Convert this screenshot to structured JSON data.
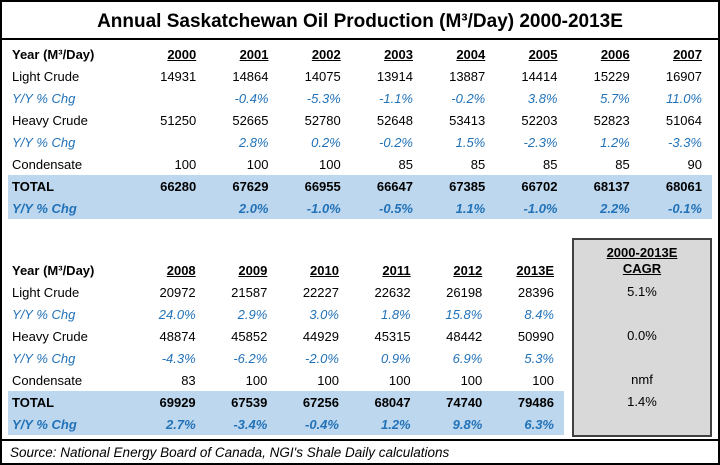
{
  "source_note": "Source: National Energy Board of Canada, NGI's Shale Daily calculations",
  "colors": {
    "accent_blue": "#2272B8",
    "total_row_bg": "#BDD7EE",
    "cagr_box_bg": "#D9D9D9",
    "cagr_box_border": "#404040"
  },
  "chart_data": {
    "type": "table",
    "title": "Annual Saskatchewan Oil Production (M³/Day) 2000-2013E",
    "unit": "M³/Day",
    "tables": [
      {
        "columns": [
          "Year (M³/Day)",
          "2000",
          "2001",
          "2002",
          "2003",
          "2004",
          "2005",
          "2006",
          "2007"
        ],
        "rows": [
          {
            "label": "Light Crude",
            "style": "normal",
            "values": [
              "14931",
              "14864",
              "14075",
              "13914",
              "13887",
              "14414",
              "15229",
              "16907"
            ]
          },
          {
            "label": "Y/Y % Chg",
            "style": "pct",
            "values": [
              "",
              "-0.4%",
              "-5.3%",
              "-1.1%",
              "-0.2%",
              "3.8%",
              "5.7%",
              "11.0%"
            ]
          },
          {
            "label": "Heavy Crude",
            "style": "normal",
            "values": [
              "51250",
              "52665",
              "52780",
              "52648",
              "53413",
              "52203",
              "52823",
              "51064"
            ]
          },
          {
            "label": "Y/Y % Chg",
            "style": "pct",
            "values": [
              "",
              "2.8%",
              "0.2%",
              "-0.2%",
              "1.5%",
              "-2.3%",
              "1.2%",
              "-3.3%"
            ]
          },
          {
            "label": "Condensate",
            "style": "normal",
            "values": [
              "100",
              "100",
              "100",
              "85",
              "85",
              "85",
              "85",
              "90"
            ]
          },
          {
            "label": "TOTAL",
            "style": "total",
            "values": [
              "66280",
              "67629",
              "66955",
              "66647",
              "67385",
              "66702",
              "68137",
              "68061"
            ]
          },
          {
            "label": "Y/Y % Chg",
            "style": "total-pct",
            "values": [
              "",
              "2.0%",
              "-1.0%",
              "-0.5%",
              "1.1%",
              "-1.0%",
              "2.2%",
              "-0.1%"
            ]
          }
        ]
      },
      {
        "columns": [
          "Year (M³/Day)",
          "2008",
          "2009",
          "2010",
          "2011",
          "2012",
          "2013E"
        ],
        "cagr_header": [
          "2000-2013E",
          "CAGR"
        ],
        "rows": [
          {
            "label": "Light Crude",
            "style": "normal",
            "values": [
              "20972",
              "21587",
              "22227",
              "22632",
              "26198",
              "28396"
            ],
            "cagr": "5.1%"
          },
          {
            "label": "Y/Y % Chg",
            "style": "pct",
            "values": [
              "24.0%",
              "2.9%",
              "3.0%",
              "1.8%",
              "15.8%",
              "8.4%"
            ]
          },
          {
            "label": "Heavy Crude",
            "style": "normal",
            "values": [
              "48874",
              "45852",
              "44929",
              "45315",
              "48442",
              "50990"
            ],
            "cagr": "0.0%"
          },
          {
            "label": "Y/Y % Chg",
            "style": "pct",
            "values": [
              "-4.3%",
              "-6.2%",
              "-2.0%",
              "0.9%",
              "6.9%",
              "5.3%"
            ]
          },
          {
            "label": "Condensate",
            "style": "normal",
            "values": [
              "83",
              "100",
              "100",
              "100",
              "100",
              "100"
            ],
            "cagr": "nmf"
          },
          {
            "label": "TOTAL",
            "style": "total",
            "values": [
              "69929",
              "67539",
              "67256",
              "68047",
              "74740",
              "79486"
            ],
            "cagr": "1.4%"
          },
          {
            "label": "Y/Y % Chg",
            "style": "total-pct",
            "values": [
              "2.7%",
              "-3.4%",
              "-0.4%",
              "1.2%",
              "9.8%",
              "6.3%"
            ]
          }
        ]
      }
    ]
  }
}
